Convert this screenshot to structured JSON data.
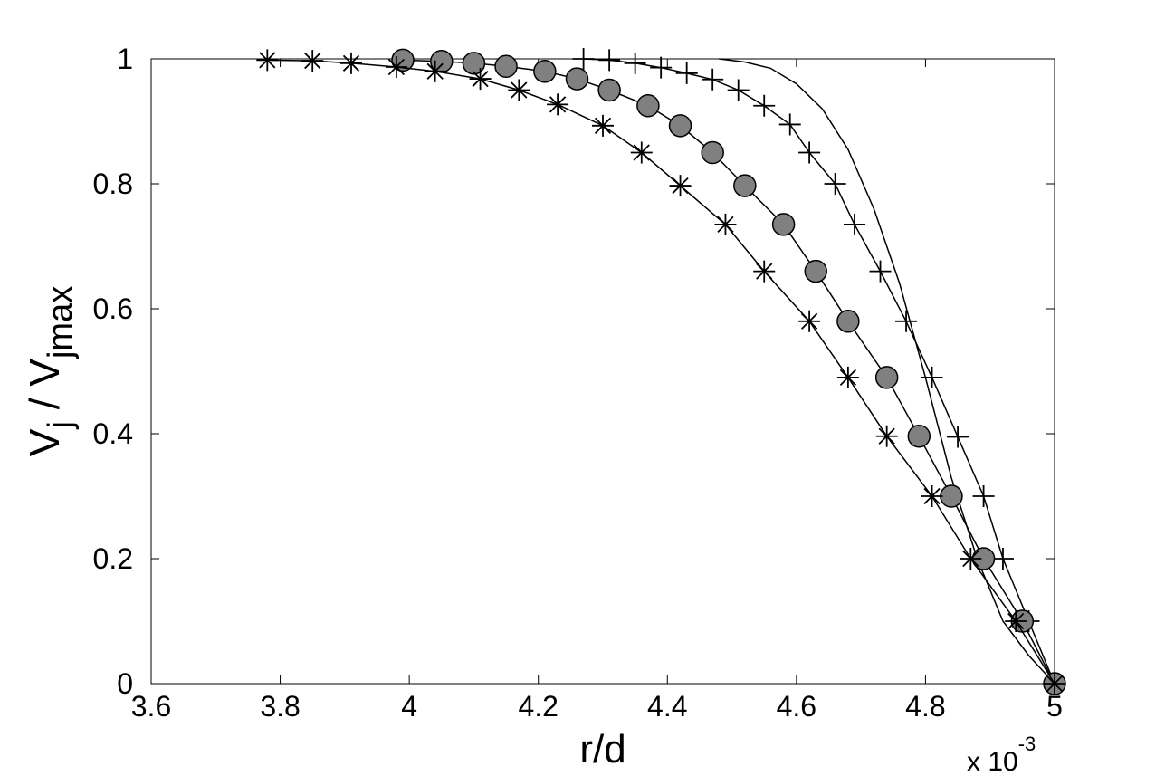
{
  "chart_data": {
    "type": "line",
    "xlabel": "r/d",
    "ylabel": {
      "main": "V",
      "sub1": "j",
      "mid": " / V",
      "sub2": "jmax"
    },
    "x_multiplier": {
      "prefix": "x 10",
      "exponent": "-3"
    },
    "xlim": [
      3.6,
      5.0
    ],
    "ylim": [
      0,
      1
    ],
    "x_ticks": [
      "3.6",
      "3.8",
      "4",
      "4.2",
      "4.4",
      "4.6",
      "4.8",
      "5"
    ],
    "x_tick_values": [
      3.6,
      3.8,
      4.0,
      4.2,
      4.4,
      4.6,
      4.8,
      5.0
    ],
    "y_ticks": [
      "0",
      "0.2",
      "0.4",
      "0.6",
      "0.8",
      "1"
    ],
    "y_tick_values": [
      0,
      0.2,
      0.4,
      0.6,
      0.8,
      1.0
    ],
    "grid": false,
    "line_color": "#000000",
    "marker_fill": "#808080",
    "series": [
      {
        "marker": "none",
        "x": [
          4.48,
          4.52,
          4.56,
          4.6,
          4.64,
          4.68,
          4.72,
          4.76,
          4.8,
          4.84,
          4.88,
          4.92,
          4.96,
          5.0
        ],
        "y": [
          1.0,
          0.995,
          0.985,
          0.96,
          0.92,
          0.855,
          0.76,
          0.64,
          0.49,
          0.33,
          0.2,
          0.1,
          0.045,
          0.0
        ]
      },
      {
        "marker": "plus",
        "x": [
          4.27,
          4.31,
          4.35,
          4.39,
          4.43,
          4.47,
          4.51,
          4.55,
          4.59,
          4.62,
          4.66,
          4.69,
          4.73,
          4.77,
          4.81,
          4.85,
          4.89,
          4.92,
          4.96,
          5.0
        ],
        "y": [
          1.0,
          0.998,
          0.993,
          0.986,
          0.977,
          0.967,
          0.95,
          0.925,
          0.895,
          0.85,
          0.8,
          0.735,
          0.66,
          0.58,
          0.49,
          0.395,
          0.3,
          0.2,
          0.1,
          0.0
        ]
      },
      {
        "marker": "circle",
        "x": [
          3.99,
          4.05,
          4.1,
          4.15,
          4.21,
          4.26,
          4.31,
          4.37,
          4.42,
          4.47,
          4.52,
          4.58,
          4.63,
          4.68,
          4.74,
          4.79,
          4.84,
          4.89,
          4.95,
          5.0
        ],
        "y": [
          0.998,
          0.996,
          0.993,
          0.988,
          0.98,
          0.968,
          0.95,
          0.925,
          0.893,
          0.85,
          0.797,
          0.735,
          0.66,
          0.58,
          0.49,
          0.396,
          0.3,
          0.2,
          0.1,
          0.0
        ]
      },
      {
        "marker": "asterisk",
        "x": [
          3.78,
          3.85,
          3.91,
          3.98,
          4.04,
          4.11,
          4.17,
          4.23,
          4.3,
          4.36,
          4.42,
          4.49,
          4.55,
          4.62,
          4.68,
          4.74,
          4.81,
          4.87,
          4.94,
          5.0
        ],
        "y": [
          0.998,
          0.997,
          0.993,
          0.987,
          0.98,
          0.968,
          0.95,
          0.927,
          0.893,
          0.85,
          0.797,
          0.735,
          0.66,
          0.58,
          0.49,
          0.396,
          0.3,
          0.2,
          0.1,
          0.0
        ]
      }
    ]
  }
}
